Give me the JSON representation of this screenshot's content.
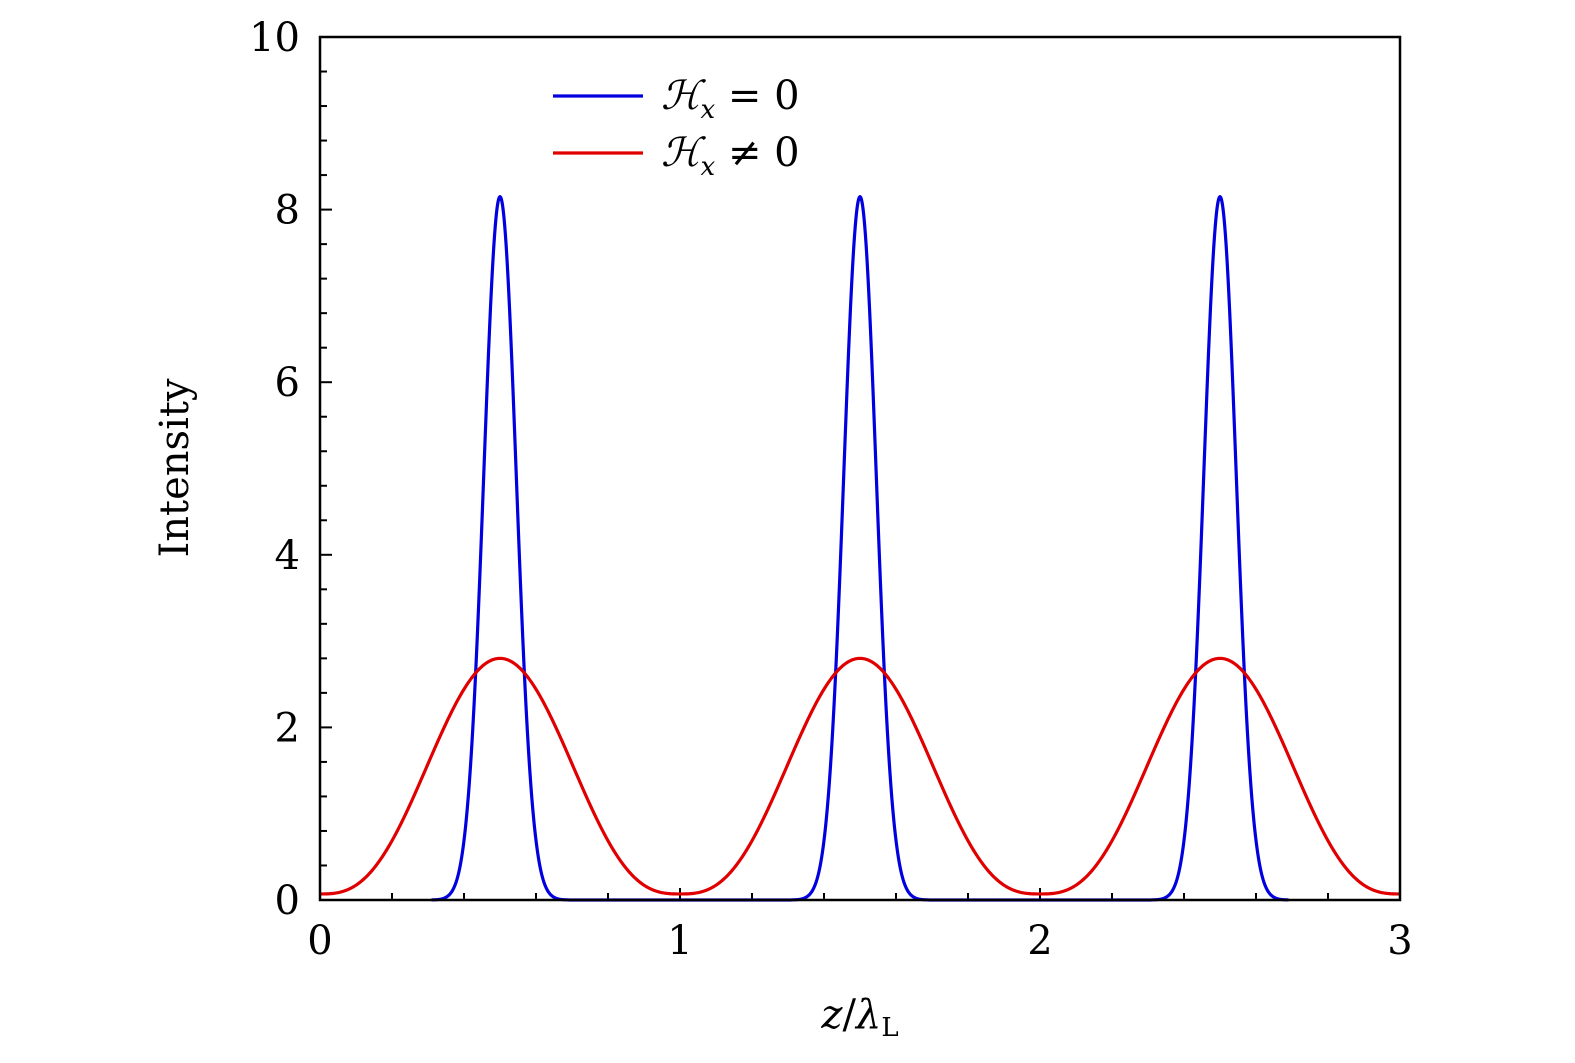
{
  "chart_data": {
    "type": "line",
    "xlabel_main": "z",
    "xlabel_slash": "/",
    "xlabel_lambda": "λ",
    "xlabel_sub": "L",
    "ylabel": "Intensity",
    "xlim": [
      0,
      3
    ],
    "ylim": [
      0,
      10
    ],
    "x_ticks": [
      0,
      1,
      2,
      3
    ],
    "x_tick_labels": [
      "0",
      "1",
      "2",
      "3"
    ],
    "y_ticks": [
      0,
      2,
      4,
      6,
      8,
      10
    ],
    "y_tick_labels": [
      "0",
      "2",
      "4",
      "6",
      "8",
      "10"
    ],
    "x_minor_step": 0.2,
    "y_minor_step": 0.4,
    "grid": false,
    "legend_position": "top-left",
    "series": [
      {
        "name": "ℋx = 0",
        "legend_symbol": "ℋ",
        "legend_sub": "x",
        "legend_rel": " = 0",
        "color": "#0000e0",
        "peaks": [
          0.5,
          1.5,
          2.5
        ],
        "peak_value": 8.15,
        "peak_sigma": 0.045,
        "support_half_width": 0.19,
        "points": [
          [
            0.31,
            0.0
          ],
          [
            0.38,
            0.1
          ],
          [
            0.42,
            1.6
          ],
          [
            0.46,
            5.8
          ],
          [
            0.5,
            8.15
          ],
          [
            0.54,
            5.8
          ],
          [
            0.58,
            1.6
          ],
          [
            0.62,
            0.1
          ],
          [
            0.69,
            0.0
          ],
          [
            1.31,
            0.0
          ],
          [
            1.38,
            0.1
          ],
          [
            1.42,
            1.6
          ],
          [
            1.46,
            5.8
          ],
          [
            1.5,
            8.15
          ],
          [
            1.54,
            5.8
          ],
          [
            1.58,
            1.6
          ],
          [
            1.62,
            0.1
          ],
          [
            1.69,
            0.0
          ],
          [
            2.31,
            0.0
          ],
          [
            2.38,
            0.1
          ],
          [
            2.42,
            1.6
          ],
          [
            2.46,
            5.8
          ],
          [
            2.5,
            8.15
          ],
          [
            2.54,
            5.8
          ],
          [
            2.58,
            1.6
          ],
          [
            2.62,
            0.1
          ],
          [
            2.69,
            0.0
          ]
        ]
      },
      {
        "name": "ℋx ≠ 0",
        "legend_symbol": "ℋ",
        "legend_sub": "x",
        "legend_rel": " ≠ 0",
        "color": "#e00000",
        "peaks": [
          0.5,
          1.5,
          2.5
        ],
        "peak_value": 2.8,
        "base_value": 0.07,
        "points": [
          [
            0.0,
            0.07
          ],
          [
            0.1,
            0.3
          ],
          [
            0.2,
            0.95
          ],
          [
            0.3,
            1.8
          ],
          [
            0.4,
            2.5
          ],
          [
            0.5,
            2.8
          ],
          [
            0.6,
            2.5
          ],
          [
            0.7,
            1.8
          ],
          [
            0.8,
            0.95
          ],
          [
            0.9,
            0.3
          ],
          [
            1.0,
            0.1
          ],
          [
            1.1,
            0.3
          ],
          [
            1.2,
            0.95
          ],
          [
            1.3,
            1.8
          ],
          [
            1.4,
            2.5
          ],
          [
            1.5,
            2.8
          ],
          [
            1.6,
            2.5
          ],
          [
            1.7,
            1.8
          ],
          [
            1.8,
            0.95
          ],
          [
            1.9,
            0.3
          ],
          [
            2.0,
            0.1
          ],
          [
            2.1,
            0.3
          ],
          [
            2.2,
            0.95
          ],
          [
            2.3,
            1.8
          ],
          [
            2.4,
            2.5
          ],
          [
            2.5,
            2.8
          ],
          [
            2.6,
            2.5
          ],
          [
            2.7,
            1.8
          ],
          [
            2.8,
            0.95
          ],
          [
            2.9,
            0.3
          ],
          [
            3.0,
            0.07
          ]
        ]
      }
    ]
  }
}
